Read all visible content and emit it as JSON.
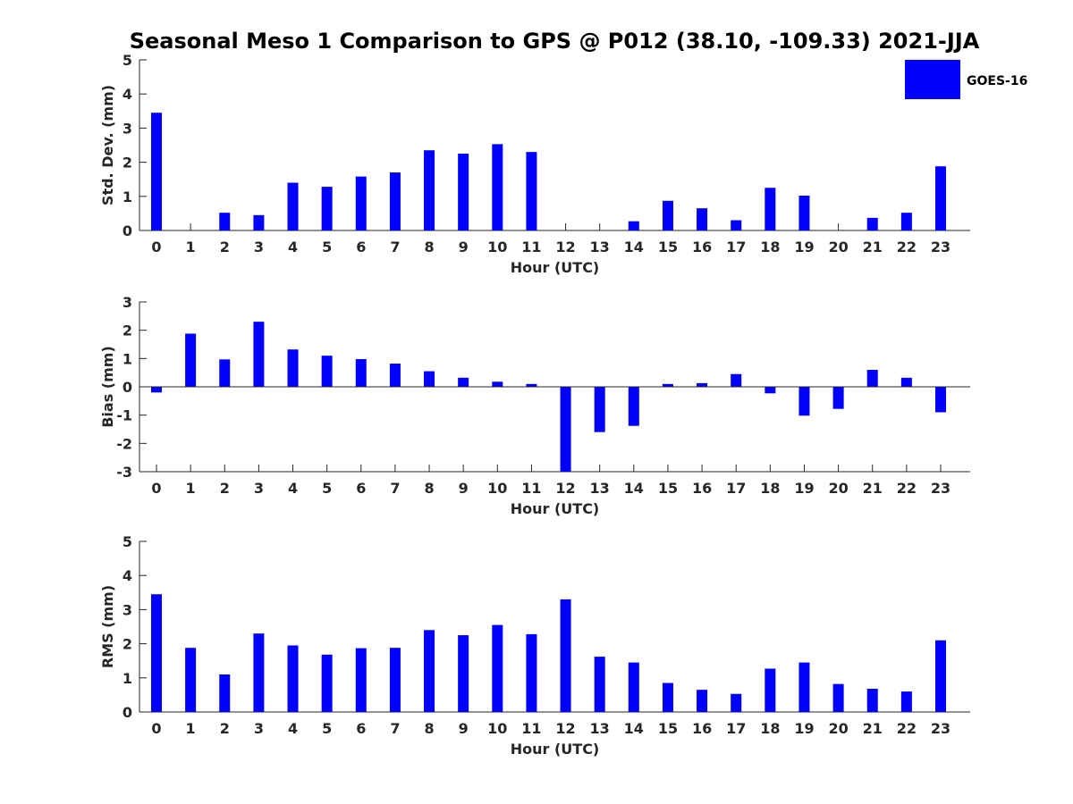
{
  "title": "Seasonal Meso 1 Comparison to GPS @ P012 (38.10, -109.33) 2021-JJA",
  "legend": {
    "label": "GOES-16",
    "color": "#0000ff"
  },
  "bar_color": "#0000ff",
  "chart_data": [
    {
      "type": "bar",
      "xlabel": "Hour (UTC)",
      "ylabel": "Std. Dev. (mm)",
      "ylim": [
        0,
        5
      ],
      "yticks": [
        0,
        1,
        2,
        3,
        4,
        5
      ],
      "categories": [
        "0",
        "1",
        "2",
        "3",
        "4",
        "5",
        "6",
        "7",
        "8",
        "9",
        "10",
        "11",
        "12",
        "13",
        "14",
        "15",
        "16",
        "17",
        "18",
        "19",
        "20",
        "21",
        "22",
        "23"
      ],
      "series": [
        {
          "name": "GOES-16",
          "values": [
            3.45,
            0,
            0.52,
            0.45,
            1.4,
            1.28,
            1.58,
            1.7,
            2.35,
            2.25,
            2.53,
            2.3,
            0,
            0,
            0.27,
            0.87,
            0.65,
            0.3,
            1.25,
            1.02,
            0,
            0.37,
            0.52,
            1.88
          ]
        }
      ]
    },
    {
      "type": "bar",
      "xlabel": "Hour (UTC)",
      "ylabel": "Bias (mm)",
      "ylim": [
        -3,
        3
      ],
      "yticks": [
        -3,
        -2,
        -1,
        0,
        1,
        2,
        3
      ],
      "categories": [
        "0",
        "1",
        "2",
        "3",
        "4",
        "5",
        "6",
        "7",
        "8",
        "9",
        "10",
        "11",
        "12",
        "13",
        "14",
        "15",
        "16",
        "17",
        "18",
        "19",
        "20",
        "21",
        "22",
        "23"
      ],
      "series": [
        {
          "name": "GOES-16",
          "values": [
            -0.2,
            1.88,
            0.97,
            2.3,
            1.32,
            1.1,
            0.98,
            0.82,
            0.55,
            0.32,
            0.18,
            0.1,
            -3.0,
            -1.6,
            -1.38,
            0.1,
            0.13,
            0.45,
            -0.23,
            -1.02,
            -0.78,
            0.6,
            0.32,
            -0.9
          ]
        }
      ]
    },
    {
      "type": "bar",
      "xlabel": "Hour (UTC)",
      "ylabel": "RMS (mm)",
      "ylim": [
        0,
        5
      ],
      "yticks": [
        0,
        1,
        2,
        3,
        4,
        5
      ],
      "categories": [
        "0",
        "1",
        "2",
        "3",
        "4",
        "5",
        "6",
        "7",
        "8",
        "9",
        "10",
        "11",
        "12",
        "13",
        "14",
        "15",
        "16",
        "17",
        "18",
        "19",
        "20",
        "21",
        "22",
        "23"
      ],
      "series": [
        {
          "name": "GOES-16",
          "values": [
            3.45,
            1.88,
            1.1,
            2.3,
            1.95,
            1.68,
            1.87,
            1.88,
            2.4,
            2.25,
            2.55,
            2.28,
            3.3,
            1.62,
            1.45,
            0.85,
            0.65,
            0.53,
            1.27,
            1.45,
            0.82,
            0.68,
            0.6,
            2.1
          ]
        }
      ]
    }
  ]
}
